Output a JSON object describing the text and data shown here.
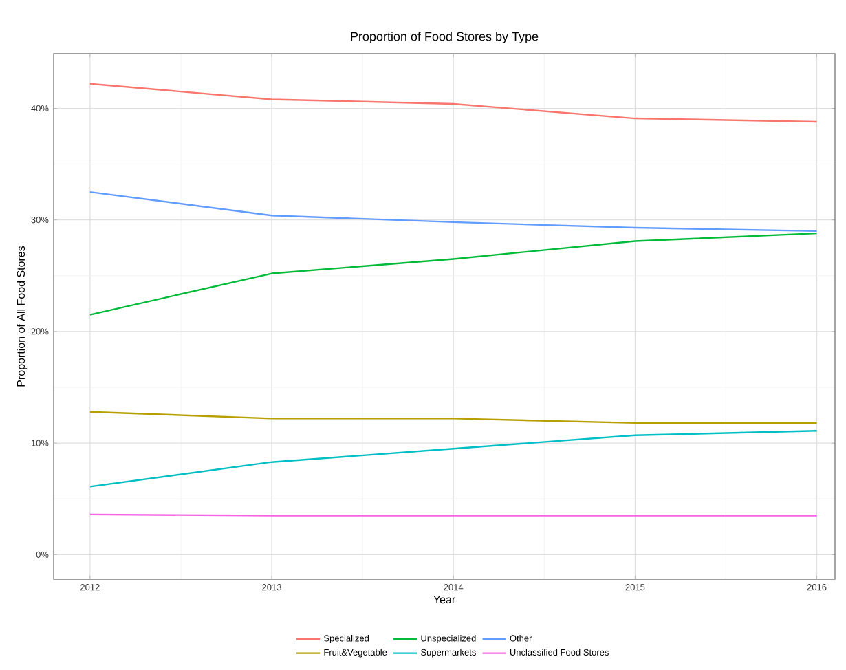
{
  "chart_data": {
    "type": "line",
    "title": "Proportion of Food Stores by Type",
    "xlabel": "Year",
    "ylabel": "Proportion of All Food Stores",
    "x": [
      2012,
      2013,
      2014,
      2015,
      2016
    ],
    "series": [
      {
        "name": "Specialized",
        "color": "#f8766d",
        "values": [
          42.2,
          40.8,
          40.4,
          39.1,
          38.8
        ]
      },
      {
        "name": "Unspecialized",
        "color": "#00ba38",
        "values": [
          21.5,
          25.2,
          26.5,
          28.1,
          28.8
        ]
      },
      {
        "name": "Other",
        "color": "#619cff",
        "values": [
          32.5,
          30.4,
          29.8,
          29.3,
          29.0
        ]
      },
      {
        "name": "Fruit&Vegetable",
        "color": "#b79f00",
        "values": [
          12.8,
          12.2,
          12.2,
          11.8,
          11.8
        ]
      },
      {
        "name": "Supermarkets",
        "color": "#00bfc4",
        "values": [
          6.1,
          8.3,
          9.5,
          10.7,
          11.1
        ]
      },
      {
        "name": "Unclassified Food Stores",
        "color": "#f564e3",
        "values": [
          3.6,
          3.5,
          3.5,
          3.5,
          3.5
        ]
      }
    ],
    "xlim": [
      2011.8,
      2016.1
    ],
    "ylim": [
      -2.2,
      44.9
    ],
    "xticks": [
      2012,
      2013,
      2014,
      2015,
      2016
    ],
    "yticks": [
      {
        "value": 0,
        "label": "0%"
      },
      {
        "value": 10,
        "label": "10%"
      },
      {
        "value": 20,
        "label": "20%"
      },
      {
        "value": 30,
        "label": "30%"
      },
      {
        "value": 40,
        "label": "40%"
      }
    ],
    "grid": true,
    "legend": "bottom",
    "marker": "none",
    "line_style": "solid"
  }
}
